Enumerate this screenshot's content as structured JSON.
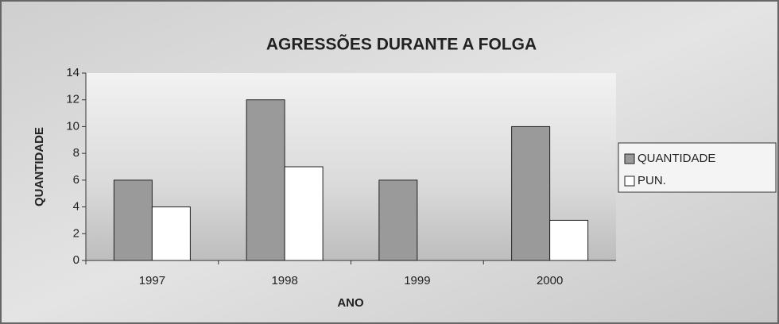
{
  "chart_data": {
    "type": "bar",
    "title": "AGRESSÕES DURANTE A FOLGA",
    "x_label": "ANO",
    "y_label": "QUANTIDADE",
    "categories": [
      "1997",
      "1998",
      "1999",
      "2000"
    ],
    "series": [
      {
        "name": "QUANTIDADE",
        "color": "#9a9a9a",
        "values": [
          6,
          12,
          6,
          10
        ]
      },
      {
        "name": "PUN.",
        "color": "#ffffff",
        "values": [
          4,
          7,
          0,
          3
        ]
      }
    ],
    "ylim": [
      0,
      14
    ],
    "yticks": [
      0,
      2,
      4,
      6,
      8,
      10,
      12,
      14
    ],
    "grid": false,
    "legend": "right"
  }
}
